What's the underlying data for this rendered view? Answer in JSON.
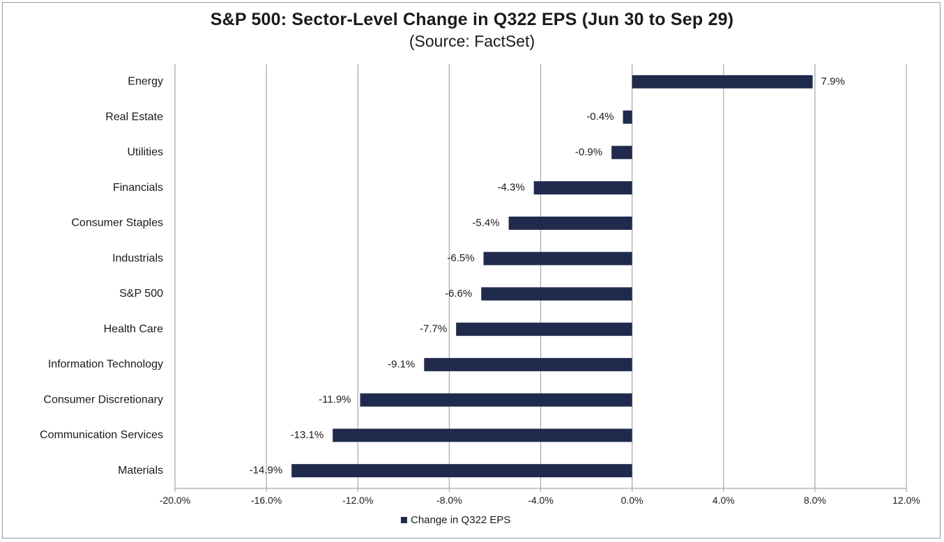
{
  "chart_data": {
    "type": "bar",
    "orientation": "horizontal",
    "title": "S&P 500: Sector-Level Change in Q322 EPS (Jun 30 to Sep 29)",
    "subtitle": "(Source: FactSet)",
    "categories": [
      "Energy",
      "Real Estate",
      "Utilities",
      "Financials",
      "Consumer Staples",
      "Industrials",
      "S&P 500",
      "Health Care",
      "Information Technology",
      "Consumer Discretionary",
      "Communication Services",
      "Materials"
    ],
    "series": [
      {
        "name": "Change in Q322 EPS",
        "values": [
          7.9,
          -0.4,
          -0.9,
          -4.3,
          -5.4,
          -6.5,
          -6.6,
          -7.7,
          -9.1,
          -11.9,
          -13.1,
          -14.9
        ],
        "labels": [
          "7.9%",
          "-0.4%",
          "-0.9%",
          "-4.3%",
          "-5.4%",
          "-6.5%",
          "-6.6%",
          "-7.7%",
          "-9.1%",
          "-11.9%",
          "-13.1%",
          "-14.9%"
        ],
        "color": "#1f2a4d"
      }
    ],
    "xlim": [
      -20.0,
      12.0
    ],
    "xticks": [
      -20,
      -16,
      -12,
      -8,
      -4,
      0,
      4,
      8,
      12
    ],
    "xtick_labels": [
      "-20.0%",
      "-16.0%",
      "-12.0%",
      "-8.0%",
      "-4.0%",
      "0.0%",
      "4.0%",
      "8.0%",
      "12.0%"
    ],
    "grid": "vertical",
    "gridline_color": "#a6a6a6",
    "legend_position": "bottom"
  }
}
